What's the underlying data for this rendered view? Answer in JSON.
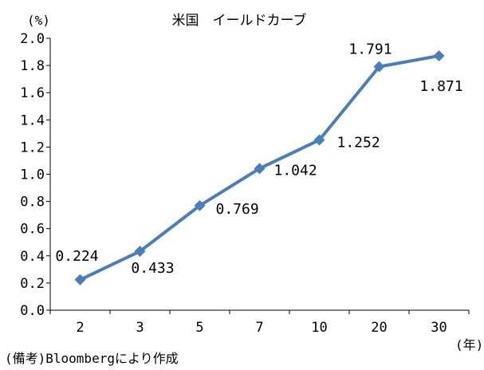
{
  "chart_data": {
    "type": "line",
    "title": "米国　イールドカーブ",
    "ylabel": "(%)",
    "xlabel": "(年)",
    "categories": [
      "2",
      "3",
      "5",
      "7",
      "10",
      "20",
      "30"
    ],
    "series": [
      {
        "values": [
          0.224,
          0.433,
          0.769,
          1.042,
          1.252,
          1.791,
          1.871
        ]
      }
    ],
    "data_labels": [
      "0.224",
      "0.433",
      "0.769",
      "1.042",
      "1.252",
      "1.791",
      "1.871"
    ],
    "ylim": [
      0,
      2.0
    ],
    "ytick_labels": [
      "0.0",
      "0.2",
      "0.4",
      "0.6",
      "0.8",
      "1.0",
      "1.2",
      "1.4",
      "1.6",
      "1.8",
      "2.0"
    ],
    "grid": false,
    "legend": "none",
    "line_color": "#4a7ebb",
    "marker": "diamond"
  },
  "source_note": "(備考)Bloombergにより作成"
}
